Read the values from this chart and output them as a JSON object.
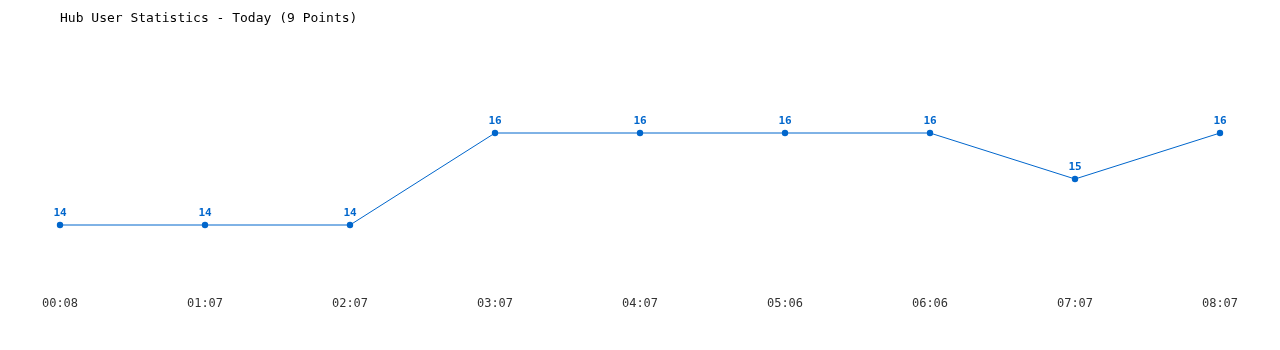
{
  "chart_data": {
    "type": "line",
    "title": "Hub User Statistics - Today (9 Points)",
    "categories": [
      "00:08",
      "01:07",
      "02:07",
      "03:07",
      "04:07",
      "05:06",
      "06:06",
      "07:07",
      "08:07"
    ],
    "series": [
      {
        "color": "#0066cc",
        "values": [
          14,
          14,
          14,
          16,
          16,
          16,
          16,
          15,
          16
        ]
      }
    ],
    "data_labels": true,
    "marker": "circle",
    "line_style": "solid"
  }
}
